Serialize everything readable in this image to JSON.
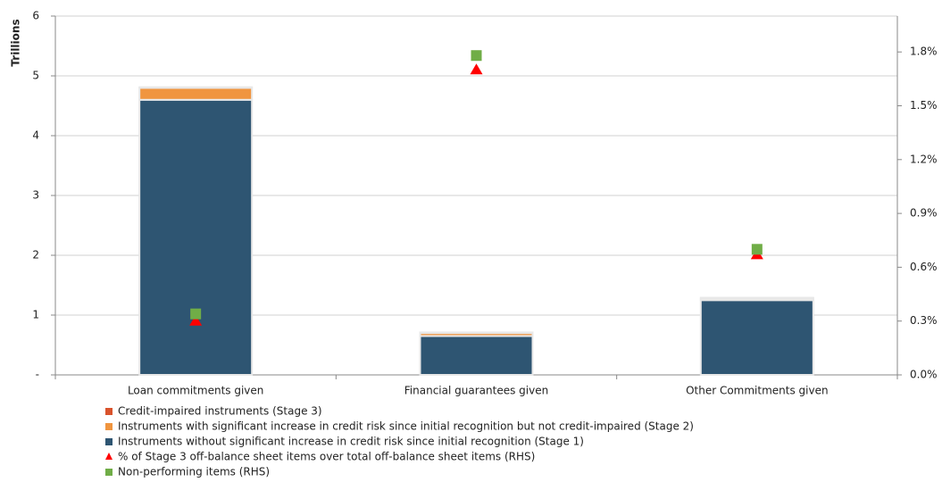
{
  "chart_data": {
    "type": "bar",
    "y_label": "Trillions",
    "categories": [
      "Loan commitments given",
      "Financial guarantees given",
      "Other Commitments given"
    ],
    "stacked": true,
    "series": [
      {
        "name": "Credit-impaired instruments (Stage 3)",
        "color": "#d9532c",
        "values": [
          0.01,
          0.01,
          0.01
        ]
      },
      {
        "name": "Instruments with significant increase in credit risk since initial recognition but not credit-impaired (Stage 2)",
        "color": "#f0953f",
        "values": [
          0.2,
          0.05,
          0.03
        ]
      },
      {
        "name": "Instruments without significant increase in credit risk since initial recognition (Stage 1)",
        "color": "#2e5572",
        "values": [
          4.6,
          0.65,
          1.25
        ]
      },
      {
        "name": "% of Stage 3 off-balance sheet items over total off-balance sheet items (RHS)",
        "color": "#ff0000",
        "type": "scatter",
        "marker": "triangle",
        "axis": "y2",
        "values": [
          0.3,
          1.7,
          0.67
        ]
      },
      {
        "name": "Non-performing items (RHS)",
        "color": "#70ad47",
        "type": "scatter",
        "marker": "square",
        "axis": "y2",
        "values": [
          0.34,
          1.78,
          0.7
        ]
      }
    ],
    "ylim": [
      0,
      6
    ],
    "yticks": [
      {
        "value": 0,
        "label": "-"
      },
      1,
      2,
      3,
      4,
      5,
      6
    ],
    "y2lim": [
      0,
      2.0
    ],
    "y2ticks": [
      {
        "value": 0,
        "label": "0.0%"
      },
      {
        "value": 0.3,
        "label": "0.3%"
      },
      {
        "value": 0.6,
        "label": "0.6%"
      },
      {
        "value": 0.9,
        "label": "0.9%"
      },
      {
        "value": 1.2,
        "label": "1.2%"
      },
      {
        "value": 1.5,
        "label": "1.5%"
      },
      {
        "value": 1.8,
        "label": "1.8%"
      }
    ],
    "grid": true
  }
}
